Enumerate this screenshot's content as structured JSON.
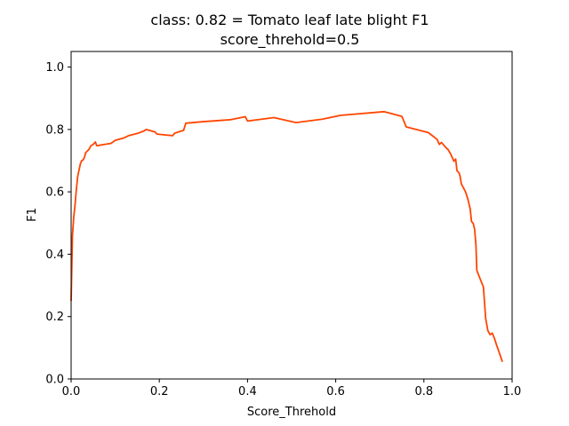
{
  "chart_data": {
    "type": "line",
    "title": "class: 0.82 = Tomato leaf late blight F1",
    "subtitle": "score_threhold=0.5",
    "xlabel": "Score_Threhold",
    "ylabel": "F1",
    "xlim": [
      0.0,
      1.0
    ],
    "ylim": [
      0.0,
      1.05
    ],
    "grid": false,
    "x_ticks": [
      "0.0",
      "0.2",
      "0.4",
      "0.6",
      "0.8",
      "1.0"
    ],
    "y_ticks": [
      "0.0",
      "0.2",
      "0.4",
      "0.6",
      "0.8",
      "1.0"
    ],
    "series": [
      {
        "color": "#ff4500",
        "x": [
          0.0,
          0.003,
          0.006,
          0.009,
          0.012,
          0.015,
          0.018,
          0.021,
          0.024,
          0.027,
          0.03,
          0.033,
          0.036,
          0.04,
          0.045,
          0.05,
          0.055,
          0.058,
          0.06,
          0.075,
          0.09,
          0.1,
          0.12,
          0.13,
          0.15,
          0.165,
          0.17,
          0.19,
          0.195,
          0.23,
          0.235,
          0.25,
          0.255,
          0.26,
          0.3,
          0.36,
          0.395,
          0.4,
          0.46,
          0.51,
          0.57,
          0.61,
          0.71,
          0.75,
          0.76,
          0.81,
          0.83,
          0.835,
          0.84,
          0.845,
          0.85,
          0.855,
          0.86,
          0.865,
          0.868,
          0.872,
          0.875,
          0.88,
          0.882,
          0.885,
          0.89,
          0.895,
          0.9,
          0.905,
          0.908,
          0.912,
          0.915,
          0.918,
          0.92,
          0.93,
          0.935,
          0.938,
          0.94,
          0.945,
          0.95,
          0.955,
          0.96,
          0.965,
          0.97,
          0.978
        ],
        "y": [
          0.25,
          0.46,
          0.52,
          0.56,
          0.61,
          0.65,
          0.67,
          0.69,
          0.7,
          0.702,
          0.71,
          0.725,
          0.73,
          0.735,
          0.748,
          0.752,
          0.76,
          0.748,
          0.748,
          0.752,
          0.755,
          0.765,
          0.773,
          0.78,
          0.787,
          0.795,
          0.8,
          0.792,
          0.785,
          0.78,
          0.788,
          0.795,
          0.797,
          0.82,
          0.825,
          0.831,
          0.841,
          0.827,
          0.838,
          0.822,
          0.833,
          0.845,
          0.857,
          0.842,
          0.808,
          0.79,
          0.768,
          0.752,
          0.758,
          0.75,
          0.742,
          0.735,
          0.723,
          0.708,
          0.698,
          0.705,
          0.668,
          0.66,
          0.65,
          0.625,
          0.612,
          0.598,
          0.575,
          0.545,
          0.505,
          0.498,
          0.48,
          0.43,
          0.348,
          0.312,
          0.295,
          0.235,
          0.195,
          0.155,
          0.142,
          0.147,
          0.13,
          0.108,
          0.088,
          0.055
        ]
      }
    ]
  }
}
